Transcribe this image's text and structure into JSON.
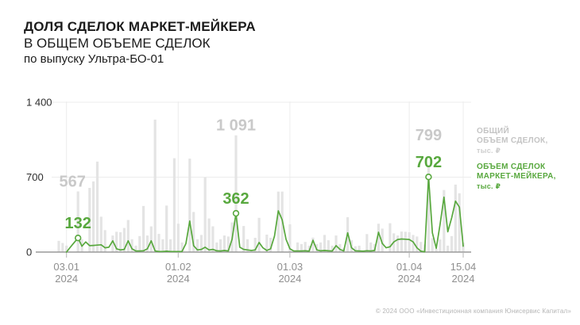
{
  "header": {
    "title_line1": "ДОЛЯ СДЕЛОК МАРКЕТ-МЕЙКЕРА",
    "title_line2": "В ОБЩЕМ ОБЪЕМЕ СДЕЛОК",
    "title_line3": "по выпуску Ультра-БО-01"
  },
  "legend": {
    "total": {
      "line1": "ОБЩИЙ",
      "line2": "ОБЪЕМ СДЕЛОК,",
      "unit": "тыс. ₽"
    },
    "mm": {
      "line1": "ОБЪЕМ СДЕЛОК",
      "line2": "МАРКЕТ-МЕЙКЕРА,",
      "unit": "тыс. ₽"
    }
  },
  "footer": {
    "copyright": "© 2024 ООО «Инвестиционная компания Юнисервис Капитал»"
  },
  "colors": {
    "accent_green": "#58a83e",
    "bar_gray": "#e4e4e4",
    "annotation_gray": "#c9c9c9",
    "grid": "#ececec",
    "axis": "#9a9a9a",
    "y_label": "#2e2e2e",
    "x_label": "#8f8f8f"
  },
  "chart_data": {
    "type": "bar",
    "subtype": "bar+line combo, daily values 01.01.2024–15.04.2024",
    "ylim": [
      0,
      1400
    ],
    "y_ticks": [
      {
        "value": 0,
        "label": "0"
      },
      {
        "value": 700,
        "label": "700"
      },
      {
        "value": 1400,
        "label": "1 400"
      }
    ],
    "x_ticks": [
      {
        "index": 2,
        "label": "03.01",
        "year": "2024"
      },
      {
        "index": 31,
        "label": "01.02",
        "year": "2024"
      },
      {
        "index": 60,
        "label": "01.03",
        "year": "2024"
      },
      {
        "index": 91,
        "label": "01.04",
        "year": "2024"
      },
      {
        "index": 105,
        "label": "15.04",
        "year": "2024"
      }
    ],
    "series": [
      {
        "name": "ОБЩИЙ ОБЪЕМ СДЕЛОК, тыс. ₽",
        "type": "bar",
        "values": [
          105,
          85,
          60,
          0,
          0,
          567,
          120,
          0,
          600,
          660,
          845,
          330,
          205,
          0,
          155,
          190,
          185,
          225,
          300,
          120,
          60,
          150,
          430,
          155,
          240,
          1238,
          170,
          120,
          435,
          120,
          877,
          265,
          90,
          0,
          873,
          375,
          120,
          160,
          698,
          314,
          241,
          90,
          120,
          155,
          145,
          277,
          1091,
          0,
          244,
          120,
          0,
          133,
          320,
          0,
          163,
          133,
          0,
          565,
          565,
          0,
          259,
          0,
          90,
          75,
          95,
          60,
          135,
          75,
          90,
          160,
          110,
          60,
          155,
          75,
          40,
          325,
          110,
          55,
          60,
          0,
          168,
          90,
          75,
          265,
          219,
          0,
          270,
          175,
          155,
          192,
          190,
          185,
          160,
          145,
          95,
          72,
          799,
          130,
          30,
          118,
          580,
          60,
          150,
          630,
          550,
          90
        ]
      },
      {
        "name": "ОБЪЕМ СДЕЛОК МАРКЕТ-МЕЙКЕРА, тыс. ₽",
        "type": "line",
        "values": [
          null,
          null,
          0,
          45,
          90,
          132,
          55,
          95,
          60,
          62,
          65,
          68,
          40,
          45,
          105,
          30,
          20,
          25,
          105,
          30,
          10,
          10,
          12,
          30,
          105,
          10,
          5,
          5,
          8,
          5,
          5,
          5,
          5,
          80,
          290,
          60,
          20,
          25,
          45,
          20,
          25,
          12,
          10,
          15,
          10,
          120,
          362,
          45,
          25,
          20,
          15,
          20,
          90,
          40,
          15,
          30,
          150,
          385,
          300,
          120,
          30,
          10,
          10,
          10,
          12,
          8,
          110,
          20,
          12,
          15,
          12,
          10,
          60,
          25,
          10,
          180,
          40,
          12,
          10,
          8,
          12,
          10,
          15,
          185,
          80,
          40,
          50,
          95,
          118,
          122,
          120,
          118,
          95,
          40,
          8,
          2,
          702,
          180,
          35,
          260,
          513,
          190,
          320,
          476,
          420,
          55
        ]
      }
    ],
    "annotations": [
      {
        "index": 5,
        "total_label": "567",
        "mm_label": "132"
      },
      {
        "index": 46,
        "total_label": "1 091",
        "mm_label": "362"
      },
      {
        "index": 96,
        "total_label": "799",
        "mm_label": "702"
      }
    ],
    "legend_position": "right",
    "grid": "horizontal lines at 700 and 1400, vertical lines at month ticks"
  }
}
